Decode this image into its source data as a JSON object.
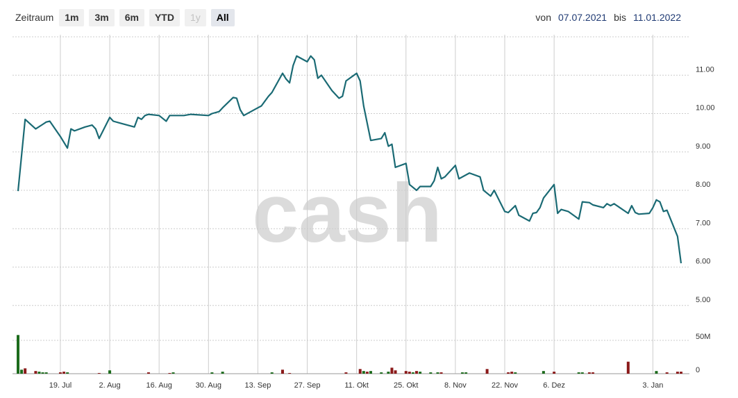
{
  "toolbar": {
    "label": "Zeitraum",
    "buttons": [
      "1m",
      "3m",
      "6m",
      "YTD",
      "1y",
      "All"
    ],
    "disabled": "1y",
    "active": "All"
  },
  "daterange": {
    "from_label": "von",
    "from": "07.07.2021",
    "to_label": "bis",
    "to": "11.01.2022"
  },
  "watermark": "cash",
  "colors": {
    "line": "#1a6a74",
    "grid": "#cccccc",
    "vol_up": "#1c6b1c",
    "vol_down": "#8b1a1a"
  },
  "chart_data": [
    {
      "type": "line",
      "x_start": "2021-07-07",
      "x_end": "2022-01-11",
      "x_ticks": [
        {
          "date": "2021-07-19",
          "label": "19. Jul"
        },
        {
          "date": "2021-08-02",
          "label": "2. Aug"
        },
        {
          "date": "2021-08-16",
          "label": "16. Aug"
        },
        {
          "date": "2021-08-30",
          "label": "30. Aug"
        },
        {
          "date": "2021-09-13",
          "label": "13. Sep"
        },
        {
          "date": "2021-09-27",
          "label": "27. Sep"
        },
        {
          "date": "2021-10-11",
          "label": "11. Okt"
        },
        {
          "date": "2021-10-25",
          "label": "25. Okt"
        },
        {
          "date": "2021-11-08",
          "label": "8. Nov"
        },
        {
          "date": "2021-11-22",
          "label": "22. Nov"
        },
        {
          "date": "2021-12-06",
          "label": "6. Dez"
        },
        {
          "date": "2022-01-03",
          "label": "3. Jan"
        }
      ],
      "ylim": [
        5,
        12
      ],
      "y_ticks": [
        5,
        6,
        7,
        8,
        9,
        10,
        11
      ],
      "y_tick_labels": [
        "5.00",
        "6.00",
        "7.00",
        "8.00",
        "9.00",
        "10.00",
        "11.00"
      ],
      "grid": true,
      "points": [
        [
          "2021-07-07",
          7.98
        ],
        [
          "2021-07-09",
          9.85
        ],
        [
          "2021-07-12",
          9.6
        ],
        [
          "2021-07-14",
          9.72
        ],
        [
          "2021-07-15",
          9.78
        ],
        [
          "2021-07-16",
          9.8
        ],
        [
          "2021-07-19",
          9.4
        ],
        [
          "2021-07-21",
          9.1
        ],
        [
          "2021-07-22",
          9.6
        ],
        [
          "2021-07-23",
          9.55
        ],
        [
          "2021-07-26",
          9.65
        ],
        [
          "2021-07-28",
          9.7
        ],
        [
          "2021-07-29",
          9.6
        ],
        [
          "2021-07-30",
          9.35
        ],
        [
          "2021-08-02",
          9.9
        ],
        [
          "2021-08-03",
          9.8
        ],
        [
          "2021-08-05",
          9.75
        ],
        [
          "2021-08-09",
          9.65
        ],
        [
          "2021-08-10",
          9.9
        ],
        [
          "2021-08-11",
          9.85
        ],
        [
          "2021-08-12",
          9.95
        ],
        [
          "2021-08-13",
          9.98
        ],
        [
          "2021-08-16",
          9.95
        ],
        [
          "2021-08-18",
          9.8
        ],
        [
          "2021-08-19",
          9.95
        ],
        [
          "2021-08-23",
          9.95
        ],
        [
          "2021-08-25",
          9.98
        ],
        [
          "2021-08-30",
          9.95
        ],
        [
          "2021-08-31",
          10.0
        ],
        [
          "2021-09-02",
          10.05
        ],
        [
          "2021-09-03",
          10.15
        ],
        [
          "2021-09-06",
          10.42
        ],
        [
          "2021-09-07",
          10.4
        ],
        [
          "2021-09-08",
          10.1
        ],
        [
          "2021-09-09",
          9.95
        ],
        [
          "2021-09-13",
          10.15
        ],
        [
          "2021-09-14",
          10.2
        ],
        [
          "2021-09-16",
          10.45
        ],
        [
          "2021-09-17",
          10.55
        ],
        [
          "2021-09-20",
          11.05
        ],
        [
          "2021-09-21",
          10.9
        ],
        [
          "2021-09-22",
          10.8
        ],
        [
          "2021-09-23",
          11.25
        ],
        [
          "2021-09-24",
          11.5
        ],
        [
          "2021-09-27",
          11.35
        ],
        [
          "2021-09-28",
          11.5
        ],
        [
          "2021-09-29",
          11.4
        ],
        [
          "2021-09-30",
          10.92
        ],
        [
          "2021-10-01",
          11.0
        ],
        [
          "2021-10-04",
          10.6
        ],
        [
          "2021-10-06",
          10.4
        ],
        [
          "2021-10-07",
          10.45
        ],
        [
          "2021-10-08",
          10.85
        ],
        [
          "2021-10-11",
          11.05
        ],
        [
          "2021-10-12",
          10.85
        ],
        [
          "2021-10-13",
          10.2
        ],
        [
          "2021-10-15",
          9.3
        ],
        [
          "2021-10-18",
          9.35
        ],
        [
          "2021-10-19",
          9.5
        ],
        [
          "2021-10-20",
          9.15
        ],
        [
          "2021-10-21",
          9.2
        ],
        [
          "2021-10-22",
          8.6
        ],
        [
          "2021-10-25",
          8.7
        ],
        [
          "2021-10-26",
          8.15
        ],
        [
          "2021-10-28",
          8.0
        ],
        [
          "2021-10-29",
          8.1
        ],
        [
          "2021-11-01",
          8.1
        ],
        [
          "2021-11-02",
          8.25
        ],
        [
          "2021-11-03",
          8.6
        ],
        [
          "2021-11-04",
          8.3
        ],
        [
          "2021-11-05",
          8.35
        ],
        [
          "2021-11-08",
          8.65
        ],
        [
          "2021-11-09",
          8.3
        ],
        [
          "2021-11-11",
          8.4
        ],
        [
          "2021-11-12",
          8.45
        ],
        [
          "2021-11-15",
          8.35
        ],
        [
          "2021-11-16",
          8.0
        ],
        [
          "2021-11-18",
          7.85
        ],
        [
          "2021-11-19",
          8.0
        ],
        [
          "2021-11-22",
          7.45
        ],
        [
          "2021-11-23",
          7.42
        ],
        [
          "2021-11-25",
          7.6
        ],
        [
          "2021-11-26",
          7.35
        ],
        [
          "2021-11-29",
          7.2
        ],
        [
          "2021-11-30",
          7.4
        ],
        [
          "2021-12-01",
          7.42
        ],
        [
          "2021-12-02",
          7.55
        ],
        [
          "2021-12-03",
          7.8
        ],
        [
          "2021-12-06",
          8.15
        ],
        [
          "2021-12-07",
          7.4
        ],
        [
          "2021-12-08",
          7.5
        ],
        [
          "2021-12-10",
          7.45
        ],
        [
          "2021-12-13",
          7.25
        ],
        [
          "2021-12-14",
          7.7
        ],
        [
          "2021-12-16",
          7.68
        ],
        [
          "2021-12-17",
          7.62
        ],
        [
          "2021-12-20",
          7.55
        ],
        [
          "2021-12-21",
          7.65
        ],
        [
          "2021-12-22",
          7.6
        ],
        [
          "2021-12-23",
          7.65
        ],
        [
          "2021-12-27",
          7.4
        ],
        [
          "2021-12-28",
          7.6
        ],
        [
          "2021-12-29",
          7.42
        ],
        [
          "2021-12-30",
          7.38
        ],
        [
          "2022-01-02",
          7.4
        ],
        [
          "2022-01-03",
          7.55
        ],
        [
          "2022-01-04",
          7.75
        ],
        [
          "2022-01-05",
          7.7
        ],
        [
          "2022-01-06",
          7.45
        ],
        [
          "2022-01-07",
          7.48
        ],
        [
          "2022-01-10",
          6.8
        ],
        [
          "2022-01-11",
          6.1
        ]
      ]
    },
    {
      "type": "bar",
      "y_ticks": [
        0,
        50
      ],
      "y_tick_labels": [
        "0",
        "50M"
      ],
      "ylim": [
        0,
        100
      ],
      "bars": [
        [
          "2021-07-07",
          58,
          "up"
        ],
        [
          "2021-07-08",
          6,
          "up"
        ],
        [
          "2021-07-09",
          8,
          "down"
        ],
        [
          "2021-07-12",
          4,
          "down"
        ],
        [
          "2021-07-13",
          3,
          "up"
        ],
        [
          "2021-07-14",
          2,
          "up"
        ],
        [
          "2021-07-15",
          2,
          "up"
        ],
        [
          "2021-07-19",
          2,
          "down"
        ],
        [
          "2021-07-20",
          3,
          "down"
        ],
        [
          "2021-07-21",
          2,
          "up"
        ],
        [
          "2021-07-30",
          1,
          "down"
        ],
        [
          "2021-08-02",
          5,
          "up"
        ],
        [
          "2021-08-13",
          2,
          "down"
        ],
        [
          "2021-08-19",
          1,
          "down"
        ],
        [
          "2021-08-20",
          2,
          "up"
        ],
        [
          "2021-08-31",
          2,
          "up"
        ],
        [
          "2021-09-03",
          3,
          "up"
        ],
        [
          "2021-09-17",
          2,
          "up"
        ],
        [
          "2021-09-20",
          6,
          "down"
        ],
        [
          "2021-09-22",
          1,
          "down"
        ],
        [
          "2021-10-08",
          2,
          "down"
        ],
        [
          "2021-10-12",
          7,
          "down"
        ],
        [
          "2021-10-13",
          4,
          "up"
        ],
        [
          "2021-10-14",
          3,
          "down"
        ],
        [
          "2021-10-15",
          4,
          "up"
        ],
        [
          "2021-10-18",
          2,
          "up"
        ],
        [
          "2021-10-20",
          3,
          "up"
        ],
        [
          "2021-10-21",
          9,
          "down"
        ],
        [
          "2021-10-22",
          5,
          "down"
        ],
        [
          "2021-10-25",
          4,
          "down"
        ],
        [
          "2021-10-26",
          3,
          "down"
        ],
        [
          "2021-10-27",
          2,
          "up"
        ],
        [
          "2021-10-28",
          4,
          "down"
        ],
        [
          "2021-10-29",
          3,
          "up"
        ],
        [
          "2021-11-01",
          2,
          "up"
        ],
        [
          "2021-11-03",
          2,
          "up"
        ],
        [
          "2021-11-04",
          2,
          "down"
        ],
        [
          "2021-11-10",
          2,
          "up"
        ],
        [
          "2021-11-11",
          2,
          "up"
        ],
        [
          "2021-11-17",
          7,
          "down"
        ],
        [
          "2021-11-23",
          2,
          "down"
        ],
        [
          "2021-11-24",
          3,
          "down"
        ],
        [
          "2021-11-25",
          2,
          "up"
        ],
        [
          "2021-12-03",
          4,
          "up"
        ],
        [
          "2021-12-06",
          3,
          "down"
        ],
        [
          "2021-12-13",
          2,
          "up"
        ],
        [
          "2021-12-14",
          2,
          "up"
        ],
        [
          "2021-12-16",
          2,
          "down"
        ],
        [
          "2021-12-17",
          2,
          "down"
        ],
        [
          "2021-12-27",
          18,
          "down"
        ],
        [
          "2022-01-04",
          4,
          "up"
        ],
        [
          "2022-01-07",
          2,
          "down"
        ],
        [
          "2022-01-10",
          3,
          "down"
        ],
        [
          "2022-01-11",
          3,
          "down"
        ]
      ]
    }
  ]
}
